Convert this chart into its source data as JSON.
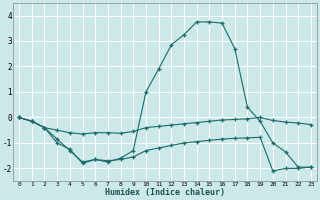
{
  "x": [
    0,
    1,
    2,
    3,
    4,
    5,
    6,
    7,
    8,
    9,
    10,
    11,
    12,
    13,
    14,
    15,
    16,
    17,
    18,
    19,
    20,
    21,
    22,
    23
  ],
  "line_top": [
    0,
    -0.15,
    -0.4,
    -1.0,
    -1.25,
    -1.8,
    -1.65,
    -1.75,
    -1.6,
    -1.3,
    1.0,
    1.9,
    2.85,
    3.25,
    3.75,
    3.75,
    3.7,
    2.7,
    0.4,
    -0.15,
    -1.0,
    -1.35,
    -1.95,
    -1.95
  ],
  "line_mid": [
    0,
    -0.15,
    -0.4,
    -0.5,
    -0.6,
    -0.65,
    -0.6,
    -0.6,
    -0.62,
    -0.55,
    -0.4,
    -0.35,
    -0.3,
    -0.25,
    -0.2,
    -0.15,
    -0.1,
    -0.08,
    -0.05,
    0.0,
    -0.12,
    -0.18,
    -0.22,
    -0.28
  ],
  "line_bot": [
    0,
    -0.15,
    -0.4,
    -0.85,
    -1.3,
    -1.75,
    -1.65,
    -1.7,
    -1.65,
    -1.55,
    -1.3,
    -1.2,
    -1.1,
    -1.0,
    -0.95,
    -0.9,
    -0.85,
    -0.82,
    -0.8,
    -0.78,
    -2.1,
    -2.0,
    -2.0,
    -1.95
  ],
  "xlabel": "Humidex (Indice chaleur)",
  "ylim": [
    -2.5,
    4.5
  ],
  "xlim": [
    -0.5,
    23.5
  ],
  "bg_color": "#cce8e8",
  "line_color": "#1a6b6b",
  "grid_color": "#ffffff",
  "yticks": [
    -2,
    -1,
    0,
    1,
    2,
    3,
    4
  ],
  "xticks": [
    0,
    1,
    2,
    3,
    4,
    5,
    6,
    7,
    8,
    9,
    10,
    11,
    12,
    13,
    14,
    15,
    16,
    17,
    18,
    19,
    20,
    21,
    22,
    23
  ]
}
